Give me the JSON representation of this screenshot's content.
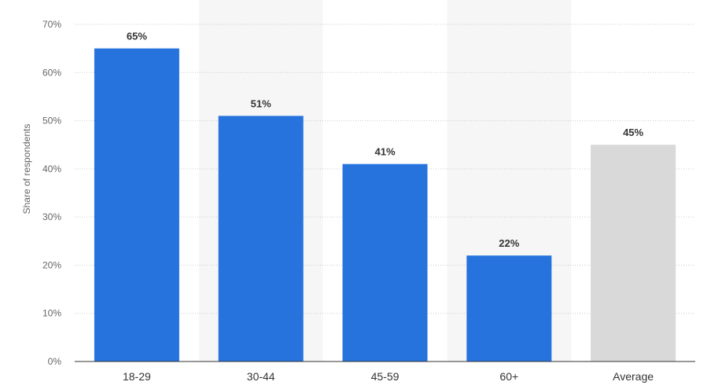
{
  "chart_data": {
    "type": "bar",
    "categories": [
      "18-29",
      "30-44",
      "45-59",
      "60+",
      "Average"
    ],
    "values": [
      65,
      51,
      41,
      22,
      45
    ],
    "value_labels": [
      "65%",
      "51%",
      "41%",
      "22%",
      "45%"
    ],
    "ylabel": "Share of respondents",
    "ylim": [
      0,
      70
    ],
    "yticks": [
      0,
      10,
      20,
      30,
      40,
      50,
      60,
      70
    ],
    "ytick_labels": [
      "0%",
      "10%",
      "20%",
      "30%",
      "40%",
      "50%",
      "60%",
      "70%"
    ],
    "grid": true,
    "colors": {
      "bar": "#2673DD",
      "average_bar": "#D9D9D9",
      "band": "#F6F6F6",
      "grid": "#CCCCCC",
      "axis": "#333333"
    }
  }
}
